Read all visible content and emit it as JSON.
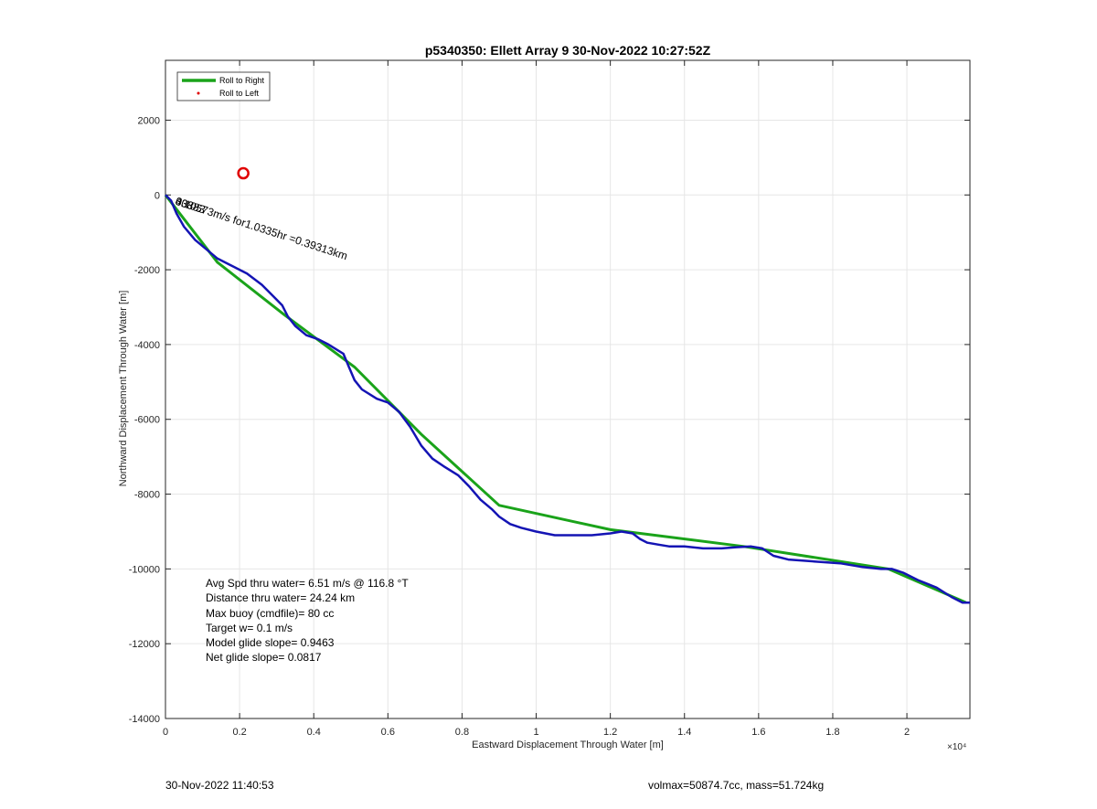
{
  "chart_data": {
    "type": "line",
    "title": "p5340350: Ellett Array 9 30-Nov-2022 10:27:52Z",
    "xlabel": "Eastward Displacement Through Water [m]",
    "ylabel": "Northward Displacement Through Water [m]",
    "x_exponent_label": "×10⁴",
    "xlim": [
      0,
      21700
    ],
    "ylim": [
      -14000,
      3600
    ],
    "x_ticks": [
      0,
      2000,
      4000,
      6000,
      8000,
      10000,
      12000,
      14000,
      16000,
      18000,
      20000
    ],
    "x_tick_labels": [
      "0",
      "0.2",
      "0.4",
      "0.6",
      "0.8",
      "1",
      "1.2",
      "1.4",
      "1.6",
      "1.8",
      "2"
    ],
    "y_ticks": [
      2000,
      0,
      -2000,
      -4000,
      -6000,
      -8000,
      -10000,
      -12000,
      -14000
    ],
    "y_tick_labels": [
      "2000",
      "0",
      "-2000",
      "-4000",
      "-6000",
      "-8000",
      "-10000",
      "-12000",
      "-14000"
    ],
    "grid": true,
    "legend_position": "top-left",
    "series": [
      {
        "name": "Roll to Right",
        "color": "#1aa31a",
        "x": [
          0,
          1400,
          3200,
          5100,
          6900,
          9000,
          12000,
          15600,
          19500,
          21600
        ],
        "y": [
          0,
          -1800,
          -3200,
          -4600,
          -6400,
          -8300,
          -8950,
          -9400,
          -10000,
          -10900
        ]
      },
      {
        "name": "Roll to Left",
        "color": "#e00000",
        "x": [
          2100
        ],
        "y": [
          580
        ]
      },
      {
        "name": "",
        "color": "#1414b4",
        "x": [
          0,
          150,
          300,
          500,
          800,
          1100,
          1400,
          1800,
          2200,
          2600,
          2900,
          3150,
          3300,
          3500,
          3800,
          4100,
          4400,
          4800,
          4950,
          5100,
          5300,
          5700,
          6000,
          6300,
          6600,
          6900,
          7200,
          7500,
          7900,
          8200,
          8500,
          8800,
          9000,
          9300,
          9600,
          10000,
          10500,
          11000,
          11500,
          12000,
          12300,
          12600,
          12800,
          13000,
          13300,
          13600,
          14000,
          14500,
          15000,
          15400,
          15800,
          16100,
          16400,
          16800,
          17500,
          18200,
          18800,
          19300,
          19600,
          19900,
          20300,
          20800,
          21200,
          21500,
          21700
        ],
        "y": [
          0,
          -150,
          -500,
          -850,
          -1200,
          -1450,
          -1700,
          -1900,
          -2100,
          -2400,
          -2700,
          -2950,
          -3250,
          -3500,
          -3750,
          -3850,
          -4000,
          -4250,
          -4600,
          -4950,
          -5200,
          -5450,
          -5550,
          -5800,
          -6200,
          -6700,
          -7050,
          -7250,
          -7500,
          -7800,
          -8150,
          -8400,
          -8600,
          -8800,
          -8900,
          -9000,
          -9100,
          -9100,
          -9100,
          -9050,
          -9000,
          -9050,
          -9200,
          -9300,
          -9350,
          -9400,
          -9400,
          -9450,
          -9450,
          -9420,
          -9400,
          -9450,
          -9650,
          -9750,
          -9800,
          -9850,
          -9950,
          -10000,
          -10000,
          -10100,
          -10300,
          -10500,
          -10750,
          -10900,
          -10900
        ]
      }
    ],
    "annotations": [
      {
        "text": "0.10573m/s for1.0335hr =0.39313km",
        "x": 150,
        "y": -150,
        "rotation_deg": 18
      },
      {
        "text": "33883",
        "x": 150,
        "y": -150,
        "rotation_deg": 18
      },
      {
        "text": "403",
        "x": 150,
        "y": -150,
        "rotation_deg": 18
      }
    ],
    "stats": [
      "Avg Spd thru water=  6.51 m/s @ 116.8 °T",
      "Distance thru water= 24.24 km",
      "Max buoy (cmdfile)= 80 cc",
      "Target w= 0.1 m/s",
      "Model glide slope= 0.9463",
      "Net glide slope= 0.0817"
    ]
  },
  "footer": {
    "timestamp": "30-Nov-2022 11:40:53",
    "summary": "volmax=50874.7cc, mass=51.724kg"
  }
}
